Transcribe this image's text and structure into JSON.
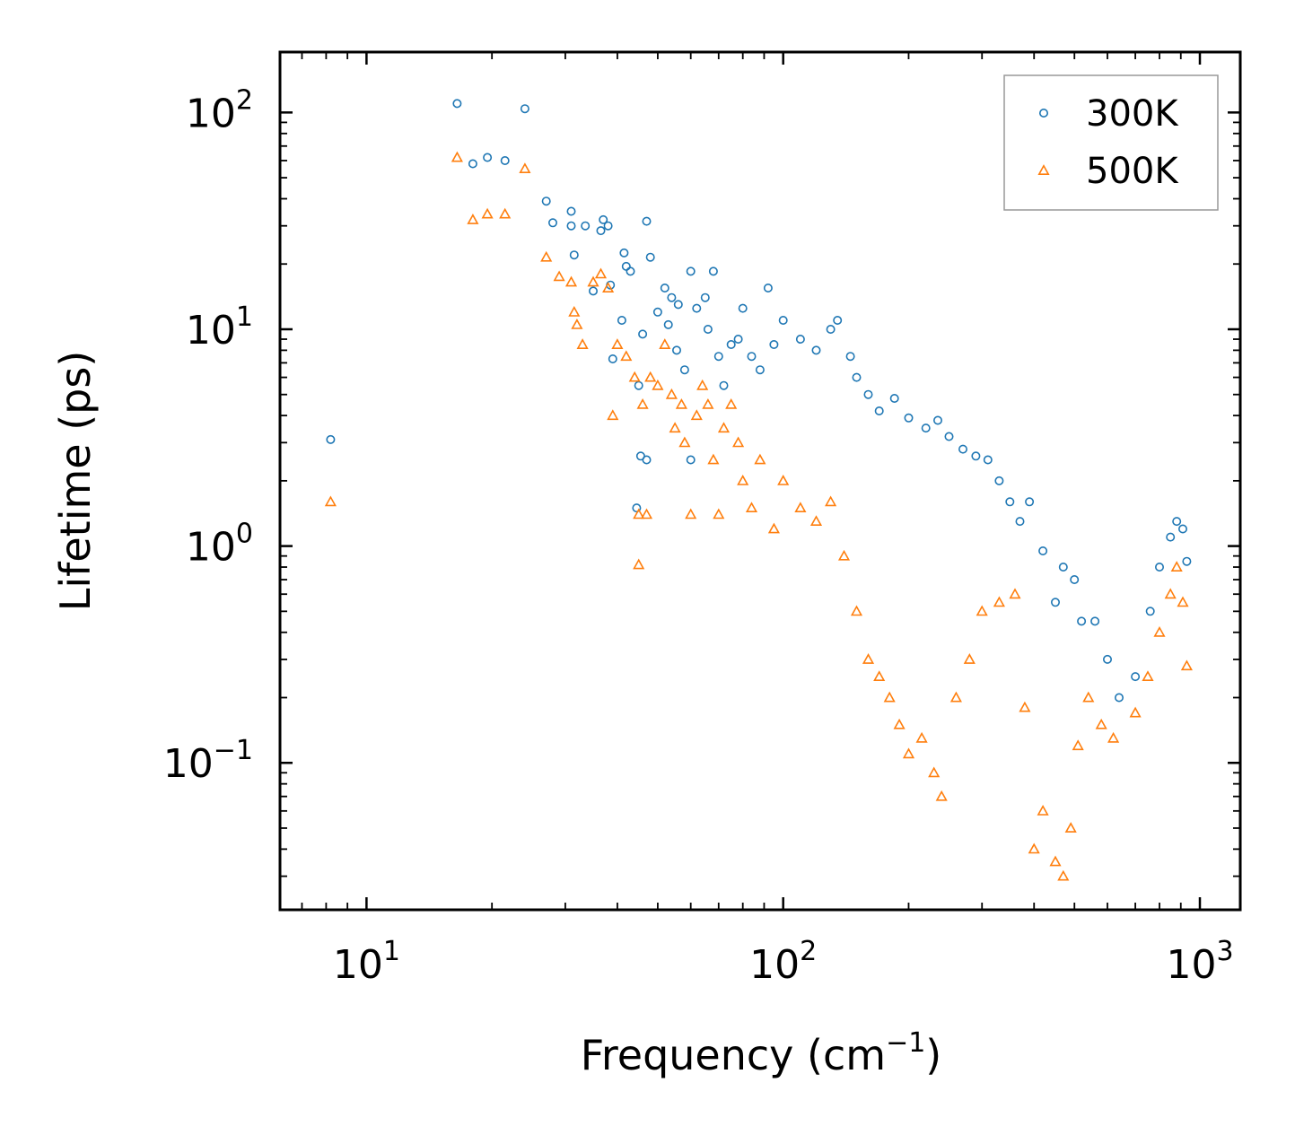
{
  "chart_data": {
    "type": "scatter",
    "xlabel": "Frequency (cm",
    "xlabel_sup": "−1",
    "xlabel_close": ")",
    "ylabel": "Lifetime (ps)",
    "x_scale": "log",
    "y_scale": "log",
    "xlim": [
      6.2,
      1250
    ],
    "ylim": [
      0.021,
      190
    ],
    "x_ticks": [
      {
        "value": 10,
        "base": "10",
        "exp": "1"
      },
      {
        "value": 100,
        "base": "10",
        "exp": "2"
      },
      {
        "value": 1000,
        "base": "10",
        "exp": "3"
      }
    ],
    "y_ticks": [
      {
        "value": 0.1,
        "base": "10",
        "exp": "−1"
      },
      {
        "value": 1,
        "base": "10",
        "exp": "0"
      },
      {
        "value": 10,
        "base": "10",
        "exp": "1"
      },
      {
        "value": 100,
        "base": "10",
        "exp": "2"
      }
    ],
    "legend_position": "top-right",
    "series": [
      {
        "name": "300K",
        "marker": "circle",
        "color": "#1f77b4",
        "points": [
          [
            8.2,
            3.1
          ],
          [
            16.5,
            110
          ],
          [
            18,
            58
          ],
          [
            19.5,
            62
          ],
          [
            21.5,
            60
          ],
          [
            24,
            104
          ],
          [
            27,
            39
          ],
          [
            28,
            31
          ],
          [
            31,
            35
          ],
          [
            31,
            30
          ],
          [
            31.5,
            22
          ],
          [
            33.5,
            30
          ],
          [
            35,
            15
          ],
          [
            36.5,
            28.5
          ],
          [
            37,
            32
          ],
          [
            38,
            30
          ],
          [
            38.5,
            16
          ],
          [
            39,
            7.3
          ],
          [
            41,
            11
          ],
          [
            41.5,
            22.5
          ],
          [
            42,
            19.5
          ],
          [
            43,
            18.5
          ],
          [
            44.5,
            1.5
          ],
          [
            45,
            5.5
          ],
          [
            45.5,
            2.6
          ],
          [
            46,
            9.5
          ],
          [
            47,
            2.5
          ],
          [
            47,
            31.5
          ],
          [
            48,
            21.5
          ],
          [
            50,
            12
          ],
          [
            52,
            15.5
          ],
          [
            53,
            10.5
          ],
          [
            54,
            14
          ],
          [
            55.5,
            8
          ],
          [
            56,
            13
          ],
          [
            58,
            6.5
          ],
          [
            60,
            18.5
          ],
          [
            60,
            2.5
          ],
          [
            62,
            12.5
          ],
          [
            65,
            14
          ],
          [
            66,
            10
          ],
          [
            68,
            18.5
          ],
          [
            70,
            7.5
          ],
          [
            72,
            5.5
          ],
          [
            75,
            8.5
          ],
          [
            78,
            9
          ],
          [
            80,
            12.5
          ],
          [
            84,
            7.5
          ],
          [
            88,
            6.5
          ],
          [
            92,
            15.5
          ],
          [
            95,
            8.5
          ],
          [
            100,
            11
          ],
          [
            110,
            9
          ],
          [
            120,
            8
          ],
          [
            130,
            10
          ],
          [
            135,
            11
          ],
          [
            145,
            7.5
          ],
          [
            150,
            6
          ],
          [
            160,
            5
          ],
          [
            170,
            4.2
          ],
          [
            185,
            4.8
          ],
          [
            200,
            3.9
          ],
          [
            220,
            3.5
          ],
          [
            235,
            3.8
          ],
          [
            250,
            3.2
          ],
          [
            270,
            2.8
          ],
          [
            290,
            2.6
          ],
          [
            310,
            2.5
          ],
          [
            330,
            2
          ],
          [
            350,
            1.6
          ],
          [
            370,
            1.3
          ],
          [
            390,
            1.6
          ],
          [
            420,
            0.95
          ],
          [
            450,
            0.55
          ],
          [
            470,
            0.8
          ],
          [
            500,
            0.7
          ],
          [
            520,
            0.45
          ],
          [
            560,
            0.45
          ],
          [
            600,
            0.3
          ],
          [
            640,
            0.2
          ],
          [
            700,
            0.25
          ],
          [
            760,
            0.5
          ],
          [
            800,
            0.8
          ],
          [
            850,
            1.1
          ],
          [
            880,
            1.3
          ],
          [
            910,
            1.2
          ],
          [
            930,
            0.85
          ]
        ]
      },
      {
        "name": "500K",
        "marker": "triangle",
        "color": "#ff7f0e",
        "points": [
          [
            8.2,
            1.6
          ],
          [
            16.5,
            62
          ],
          [
            18,
            32
          ],
          [
            19.5,
            34
          ],
          [
            21.5,
            34
          ],
          [
            24,
            55
          ],
          [
            27,
            21.5
          ],
          [
            29,
            17.5
          ],
          [
            31,
            16.5
          ],
          [
            31.5,
            12
          ],
          [
            32,
            10.5
          ],
          [
            33,
            8.5
          ],
          [
            35,
            16.5
          ],
          [
            36.5,
            18
          ],
          [
            38,
            15.5
          ],
          [
            39,
            4
          ],
          [
            40,
            8.5
          ],
          [
            42,
            7.5
          ],
          [
            44,
            6
          ],
          [
            45,
            1.4
          ],
          [
            45,
            0.82
          ],
          [
            46,
            4.5
          ],
          [
            47,
            1.4
          ],
          [
            48,
            6
          ],
          [
            50,
            5.5
          ],
          [
            52,
            8.5
          ],
          [
            54,
            5
          ],
          [
            55,
            3.5
          ],
          [
            57,
            4.5
          ],
          [
            58,
            3
          ],
          [
            60,
            1.4
          ],
          [
            62,
            4
          ],
          [
            64,
            5.5
          ],
          [
            66,
            4.5
          ],
          [
            68,
            2.5
          ],
          [
            70,
            1.4
          ],
          [
            72,
            3.5
          ],
          [
            75,
            4.5
          ],
          [
            78,
            3
          ],
          [
            80,
            2
          ],
          [
            84,
            1.5
          ],
          [
            88,
            2.5
          ],
          [
            95,
            1.2
          ],
          [
            100,
            2
          ],
          [
            110,
            1.5
          ],
          [
            120,
            1.3
          ],
          [
            130,
            1.6
          ],
          [
            140,
            0.9
          ],
          [
            150,
            0.5
          ],
          [
            160,
            0.3
          ],
          [
            170,
            0.25
          ],
          [
            180,
            0.2
          ],
          [
            190,
            0.15
          ],
          [
            200,
            0.11
          ],
          [
            215,
            0.13
          ],
          [
            230,
            0.09
          ],
          [
            240,
            0.07
          ],
          [
            260,
            0.2
          ],
          [
            280,
            0.3
          ],
          [
            300,
            0.5
          ],
          [
            330,
            0.55
          ],
          [
            360,
            0.6
          ],
          [
            380,
            0.18
          ],
          [
            400,
            0.04
          ],
          [
            420,
            0.06
          ],
          [
            450,
            0.035
          ],
          [
            470,
            0.03
          ],
          [
            490,
            0.05
          ],
          [
            510,
            0.12
          ],
          [
            540,
            0.2
          ],
          [
            580,
            0.15
          ],
          [
            620,
            0.13
          ],
          [
            700,
            0.17
          ],
          [
            750,
            0.25
          ],
          [
            800,
            0.4
          ],
          [
            850,
            0.6
          ],
          [
            880,
            0.8
          ],
          [
            910,
            0.55
          ],
          [
            930,
            0.28
          ]
        ]
      }
    ]
  }
}
